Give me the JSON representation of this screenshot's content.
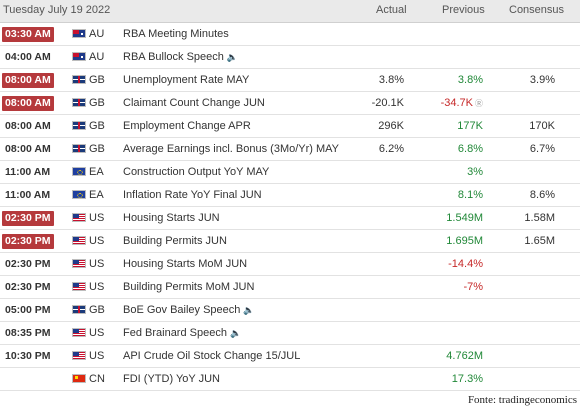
{
  "header": {
    "date": "Tuesday July 19 2022",
    "actual": "Actual",
    "previous": "Previous",
    "consensus": "Consensus"
  },
  "rows": [
    {
      "time": "03:30 AM",
      "highlight": true,
      "flag": "au-flag-icon",
      "country": "AU",
      "event": "RBA Meeting Minutes",
      "speech": false,
      "actual": "",
      "previous": "",
      "previous_color": "",
      "revised": false,
      "consensus": ""
    },
    {
      "time": "04:00 AM",
      "highlight": false,
      "flag": "au-flag-icon",
      "country": "AU",
      "event": "RBA Bullock Speech",
      "speech": true,
      "actual": "",
      "previous": "",
      "previous_color": "",
      "revised": false,
      "consensus": ""
    },
    {
      "time": "08:00 AM",
      "highlight": true,
      "flag": "gb-flag-icon",
      "country": "GB",
      "event": "Unemployment Rate MAY",
      "speech": false,
      "actual": "3.8%",
      "previous": "3.8%",
      "previous_color": "green",
      "revised": false,
      "consensus": "3.9%"
    },
    {
      "time": "08:00 AM",
      "highlight": true,
      "flag": "gb-flag-icon",
      "country": "GB",
      "event": "Claimant Count Change JUN",
      "speech": false,
      "actual": "-20.1K",
      "previous": "-34.7K",
      "previous_color": "red",
      "revised": true,
      "consensus": ""
    },
    {
      "time": "08:00 AM",
      "highlight": false,
      "flag": "gb-flag-icon",
      "country": "GB",
      "event": "Employment Change APR",
      "speech": false,
      "actual": "296K",
      "previous": "177K",
      "previous_color": "green",
      "revised": false,
      "consensus": "170K"
    },
    {
      "time": "08:00 AM",
      "highlight": false,
      "flag": "gb-flag-icon",
      "country": "GB",
      "event": "Average Earnings incl. Bonus (3Mo/Yr) MAY",
      "speech": false,
      "actual": "6.2%",
      "previous": "6.8%",
      "previous_color": "green",
      "revised": false,
      "consensus": "6.7%"
    },
    {
      "time": "11:00 AM",
      "highlight": false,
      "flag": "ea-flag-icon",
      "country": "EA",
      "event": "Construction Output YoY MAY",
      "speech": false,
      "actual": "",
      "previous": "3%",
      "previous_color": "green",
      "revised": false,
      "consensus": ""
    },
    {
      "time": "11:00 AM",
      "highlight": false,
      "flag": "ea-flag-icon",
      "country": "EA",
      "event": "Inflation Rate YoY Final JUN",
      "speech": false,
      "actual": "",
      "previous": "8.1%",
      "previous_color": "green",
      "revised": false,
      "consensus": "8.6%"
    },
    {
      "time": "02:30 PM",
      "highlight": true,
      "flag": "us-flag-icon",
      "country": "US",
      "event": "Housing Starts JUN",
      "speech": false,
      "actual": "",
      "previous": "1.549M",
      "previous_color": "green",
      "revised": false,
      "consensus": "1.58M"
    },
    {
      "time": "02:30 PM",
      "highlight": true,
      "flag": "us-flag-icon",
      "country": "US",
      "event": "Building Permits JUN",
      "speech": false,
      "actual": "",
      "previous": "1.695M",
      "previous_color": "green",
      "revised": false,
      "consensus": "1.65M"
    },
    {
      "time": "02:30 PM",
      "highlight": false,
      "flag": "us-flag-icon",
      "country": "US",
      "event": "Housing Starts MoM JUN",
      "speech": false,
      "actual": "",
      "previous": "-14.4%",
      "previous_color": "red",
      "revised": false,
      "consensus": ""
    },
    {
      "time": "02:30 PM",
      "highlight": false,
      "flag": "us-flag-icon",
      "country": "US",
      "event": "Building Permits MoM JUN",
      "speech": false,
      "actual": "",
      "previous": "-7%",
      "previous_color": "red",
      "revised": false,
      "consensus": ""
    },
    {
      "time": "05:00 PM",
      "highlight": false,
      "flag": "gb-flag-icon",
      "country": "GB",
      "event": "BoE Gov Bailey Speech",
      "speech": true,
      "actual": "",
      "previous": "",
      "previous_color": "",
      "revised": false,
      "consensus": ""
    },
    {
      "time": "08:35 PM",
      "highlight": false,
      "flag": "us-flag-icon",
      "country": "US",
      "event": "Fed Brainard Speech",
      "speech": true,
      "actual": "",
      "previous": "",
      "previous_color": "",
      "revised": false,
      "consensus": ""
    },
    {
      "time": "10:30 PM",
      "highlight": false,
      "flag": "us-flag-icon",
      "country": "US",
      "event": "API Crude Oil Stock Change 15/JUL",
      "speech": false,
      "actual": "",
      "previous": "4.762M",
      "previous_color": "green",
      "revised": false,
      "consensus": ""
    },
    {
      "time": "",
      "highlight": false,
      "flag": "cn-flag-icon",
      "country": "CN",
      "event": "FDI (YTD) YoY JUN",
      "speech": false,
      "actual": "",
      "previous": "17.3%",
      "previous_color": "green",
      "revised": false,
      "consensus": ""
    }
  ],
  "source": "Fonte: tradingeconomics",
  "colors": {
    "highlight": "#b5393c",
    "positive": "#218838",
    "negative": "#c62828",
    "header_bg": "#eaeaea"
  }
}
